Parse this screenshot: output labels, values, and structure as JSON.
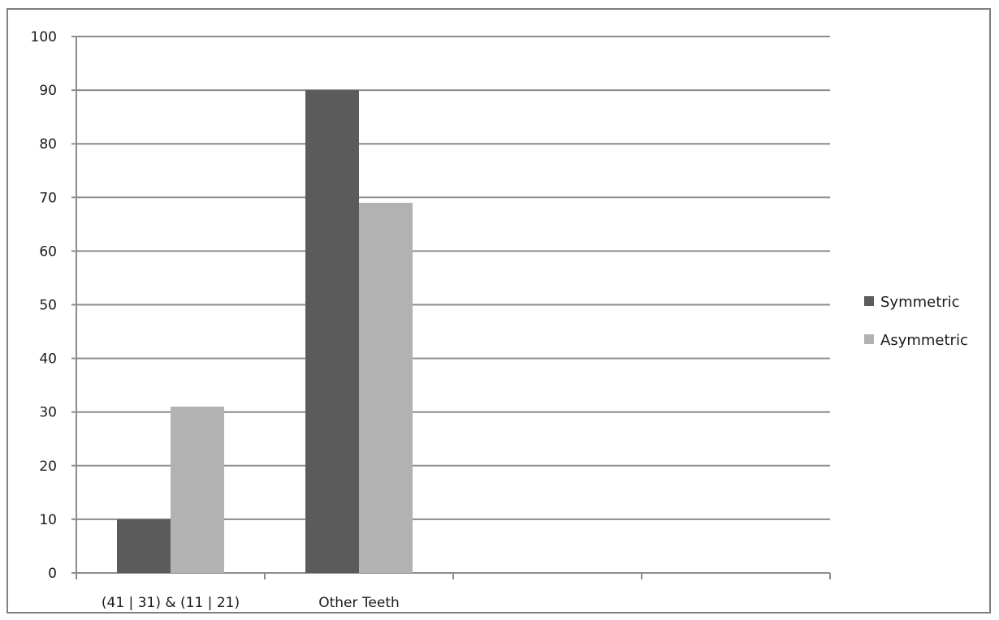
{
  "chart_data": {
    "type": "bar",
    "categories": [
      "(41 | 31) & (11 | 21)",
      "Other Teeth",
      "",
      ""
    ],
    "series": [
      {
        "name": "Symmetric",
        "values": [
          10,
          90,
          null,
          null
        ],
        "color": "#5b5b5b"
      },
      {
        "name": "Asymmetric",
        "values": [
          31,
          69,
          null,
          null
        ],
        "color": "#b2b2b2"
      }
    ],
    "title": "",
    "xlabel": "",
    "ylabel": "",
    "ylim": [
      0,
      100
    ],
    "yticks": [
      0,
      10,
      20,
      30,
      40,
      50,
      60,
      70,
      80,
      90,
      100
    ],
    "grid": true,
    "legend": "right",
    "colors": {
      "gridline": "#8c8c8c",
      "axis": "#8c8c8c",
      "text": "#1a1a1a"
    }
  }
}
